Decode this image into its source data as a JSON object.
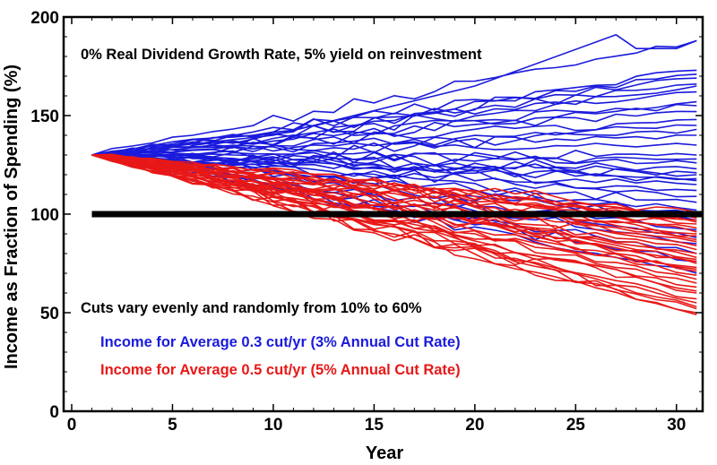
{
  "chart_data": {
    "type": "line",
    "title": "",
    "xlabel": "Year",
    "ylabel": "Income as Fraction of Spending (%)",
    "xlim": [
      -0.4,
      31.3
    ],
    "ylim": [
      0,
      200
    ],
    "x_ticks": [
      "0",
      "5",
      "10",
      "15",
      "20",
      "25",
      "30"
    ],
    "y_ticks": [
      "0",
      "50",
      "100",
      "150",
      "200"
    ],
    "grid": false,
    "legend": "none",
    "annotations": {
      "header": "0% Real Dividend Growth Rate, 5% yield on reinvestment",
      "cuts_note": "Cuts vary evenly and randomly from 10% to 60%",
      "blue_note": "Income for Average 0.3 cut/yr (3% Annual Cut Rate)",
      "red_note": "Income for Average 0.5 cut/yr (5% Annual Cut Rate)"
    },
    "colors": {
      "blue": "#1a1adc",
      "red": "#e81818",
      "threshold": "#000000"
    },
    "x_start": 1,
    "threshold": {
      "y": 100,
      "x_start": 1,
      "x_end": 31.3
    },
    "series_groups": [
      {
        "color": "#1a1adc",
        "endpoints": [
          188,
          173,
          171,
          169,
          166,
          165,
          162,
          157,
          155,
          152,
          148,
          145,
          143,
          140,
          135,
          130,
          128,
          126,
          123,
          121,
          120,
          118,
          117,
          115,
          112,
          109,
          106,
          102,
          100,
          97,
          92,
          88,
          85,
          80,
          76,
          70
        ],
        "peaks": [
          [
            27,
            191,
            30,
            184
          ]
        ]
      },
      {
        "color": "#e81818",
        "endpoints": [
          101,
          99,
          98,
          97,
          96,
          95,
          93,
          91,
          90,
          89,
          87,
          86,
          84,
          82,
          80,
          78,
          77,
          76,
          75,
          73,
          72,
          71,
          69,
          67,
          65,
          63,
          61,
          60,
          57,
          55,
          53,
          52,
          50,
          49
        ]
      }
    ]
  }
}
